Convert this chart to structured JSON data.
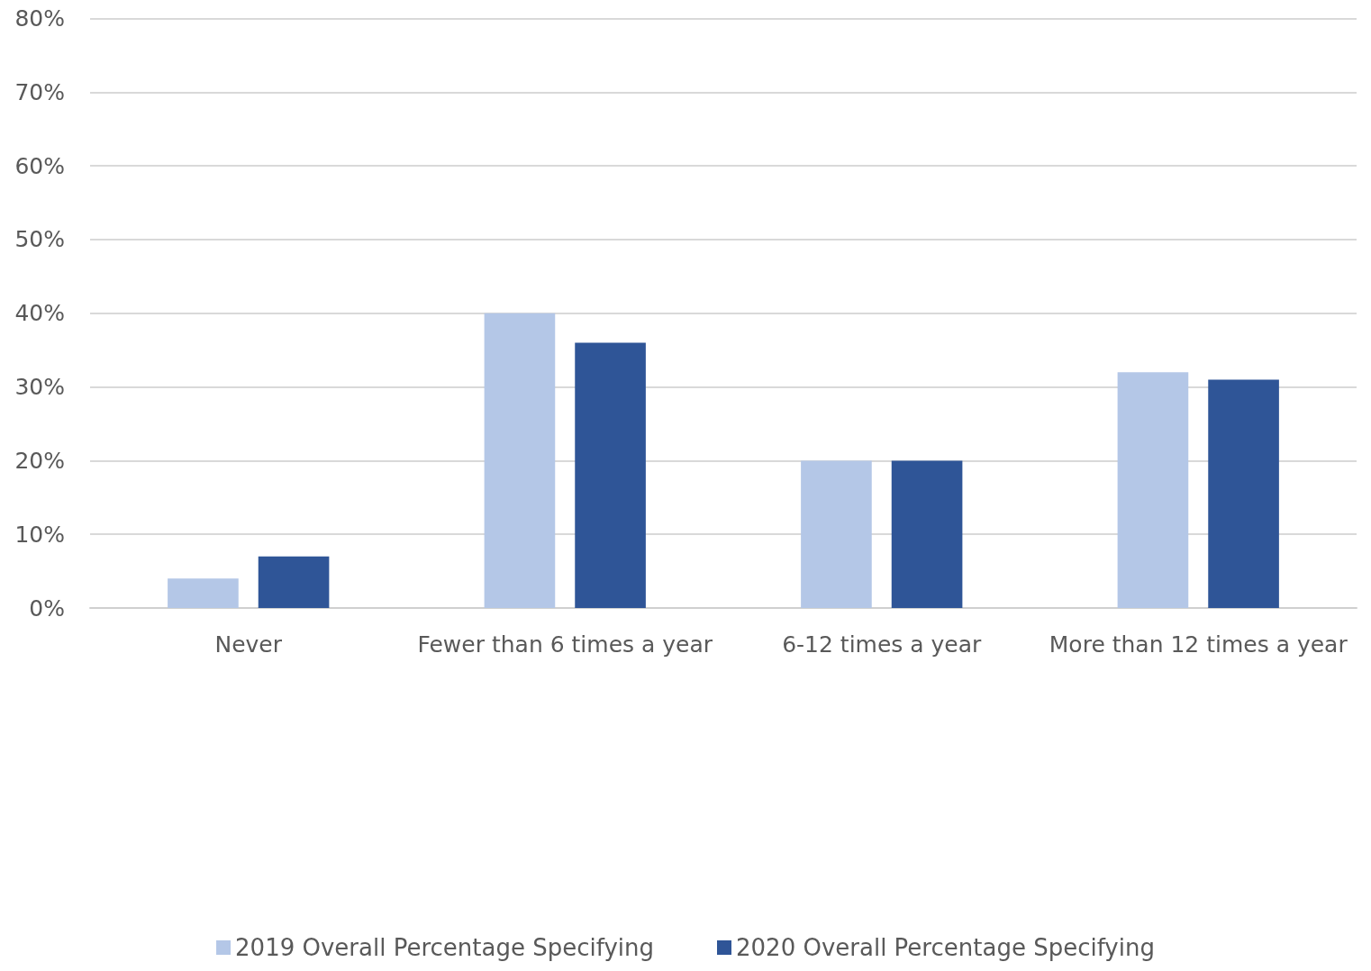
{
  "chart_data": {
    "type": "bar",
    "categories": [
      "Never",
      "Fewer than 6 times a year",
      "6-12 times a year",
      "More than 12 times a year"
    ],
    "series": [
      {
        "name": "2019 Overall Percentage Specifying",
        "color": "#b4c7e7",
        "values": [
          4,
          40,
          20,
          32
        ]
      },
      {
        "name": "2020 Overall Percentage Specifying",
        "color": "#2f5597",
        "values": [
          7,
          36,
          20,
          31
        ]
      }
    ],
    "ylim": [
      0,
      80
    ],
    "yticks": [
      {
        "value": 0,
        "label": "0%"
      },
      {
        "value": 10,
        "label": "10%"
      },
      {
        "value": 20,
        "label": "20%"
      },
      {
        "value": 30,
        "label": "30%"
      },
      {
        "value": 40,
        "label": "40%"
      },
      {
        "value": 50,
        "label": "50%"
      },
      {
        "value": 60,
        "label": "60%"
      },
      {
        "value": 70,
        "label": "70%"
      },
      {
        "value": 80,
        "label": "80%"
      }
    ],
    "grid": "y",
    "legend": "bottom"
  }
}
